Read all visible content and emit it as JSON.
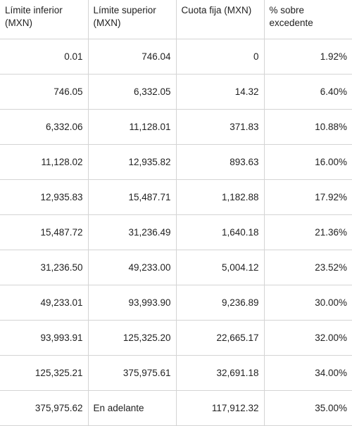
{
  "table": {
    "headers": [
      "Límite inferior (MXN)",
      "Límite superior (MXN)",
      "Cuota fija (MXN)",
      "% sobre excedente"
    ],
    "rows": [
      [
        "0.01",
        "746.04",
        "0",
        "1.92%"
      ],
      [
        "746.05",
        "6,332.05",
        "14.32",
        "6.40%"
      ],
      [
        "6,332.06",
        "11,128.01",
        "371.83",
        "10.88%"
      ],
      [
        "11,128.02",
        "12,935.82",
        "893.63",
        "16.00%"
      ],
      [
        "12,935.83",
        "15,487.71",
        "1,182.88",
        "17.92%"
      ],
      [
        "15,487.72",
        "31,236.49",
        "1,640.18",
        "21.36%"
      ],
      [
        "31,236.50",
        "49,233.00",
        "5,004.12",
        "23.52%"
      ],
      [
        "49,233.01",
        "93,993.90",
        "9,236.89",
        "30.00%"
      ],
      [
        "93,993.91",
        "125,325.20",
        "22,665.17",
        "32.00%"
      ],
      [
        "125,325.21",
        "375,975.61",
        "32,691.18",
        "34.00%"
      ],
      [
        "375,975.62",
        "En adelante",
        "117,912.32",
        "35.00%"
      ]
    ]
  }
}
